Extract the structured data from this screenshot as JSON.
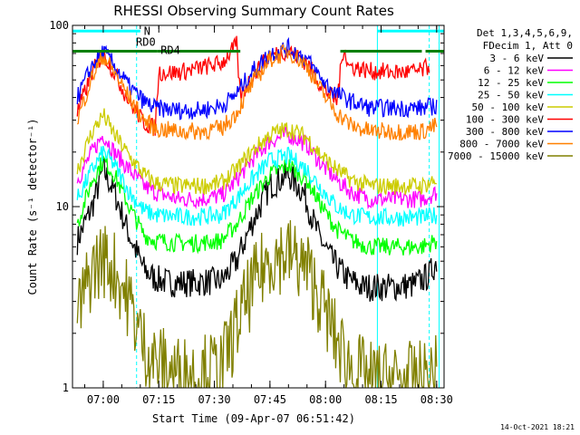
{
  "chart_data": {
    "type": "line",
    "title": "RHESSI Observing Summary Count Rates",
    "xlabel": "Start Time (09-Apr-07 06:51:42)",
    "ylabel": "Count Rate (s⁻¹ detector⁻¹)",
    "yscale": "log",
    "ylim": [
      1,
      100
    ],
    "xlim_minutes_clock": [
      "06:51:42",
      "08:32:00"
    ],
    "x_ticks": [
      "07:00",
      "07:15",
      "07:30",
      "07:45",
      "08:00",
      "08:15",
      "08:30"
    ],
    "y_ticks": [
      "1",
      "10",
      "100"
    ],
    "legend_header": [
      "Det 1,3,4,5,6,9,",
      "FDecim 1, Att 0"
    ],
    "series": [
      {
        "name": "3 - 6 keV",
        "color": "#000000",
        "points": [
          [
            "06:53",
            6.5
          ],
          [
            "06:57",
            10
          ],
          [
            "07:00",
            16
          ],
          [
            "07:03",
            12
          ],
          [
            "07:07",
            7
          ],
          [
            "07:11",
            4.5
          ],
          [
            "07:14",
            4
          ],
          [
            "07:18",
            3.8
          ],
          [
            "07:25",
            3.8
          ],
          [
            "07:32",
            3.9
          ],
          [
            "07:36",
            5
          ],
          [
            "07:40",
            8
          ],
          [
            "07:45",
            13
          ],
          [
            "07:50",
            15
          ],
          [
            "07:54",
            12
          ],
          [
            "07:58",
            7
          ],
          [
            "08:02",
            5
          ],
          [
            "08:06",
            4
          ],
          [
            "08:10",
            3.6
          ],
          [
            "08:18",
            3.6
          ],
          [
            "08:24",
            3.7
          ],
          [
            "08:28",
            4.2
          ],
          [
            "08:30",
            5
          ]
        ]
      },
      {
        "name": "6 - 12 keV",
        "color": "#ff00ff",
        "points": [
          [
            "06:53",
            14
          ],
          [
            "06:57",
            20
          ],
          [
            "07:00",
            25
          ],
          [
            "07:03",
            20
          ],
          [
            "07:07",
            16
          ],
          [
            "07:11",
            13
          ],
          [
            "07:14",
            12
          ],
          [
            "07:20",
            11
          ],
          [
            "07:26",
            11
          ],
          [
            "07:32",
            11.5
          ],
          [
            "07:36",
            14
          ],
          [
            "07:40",
            18
          ],
          [
            "07:45",
            23
          ],
          [
            "07:50",
            25
          ],
          [
            "07:55",
            22
          ],
          [
            "07:59",
            17
          ],
          [
            "08:03",
            14
          ],
          [
            "08:07",
            12
          ],
          [
            "08:12",
            11
          ],
          [
            "08:20",
            11
          ],
          [
            "08:26",
            11
          ],
          [
            "08:30",
            12
          ]
        ]
      },
      {
        "name": "12 - 25 keV",
        "color": "#00ff00",
        "points": [
          [
            "06:53",
            8
          ],
          [
            "06:57",
            14
          ],
          [
            "07:00",
            18
          ],
          [
            "07:03",
            15
          ],
          [
            "07:07",
            10
          ],
          [
            "07:11",
            7
          ],
          [
            "07:14",
            6.5
          ],
          [
            "07:20",
            6.3
          ],
          [
            "07:26",
            6.3
          ],
          [
            "07:32",
            6.5
          ],
          [
            "07:36",
            8
          ],
          [
            "07:40",
            11
          ],
          [
            "07:45",
            15
          ],
          [
            "07:50",
            17
          ],
          [
            "07:55",
            14
          ],
          [
            "07:59",
            10
          ],
          [
            "08:03",
            7.5
          ],
          [
            "08:07",
            6.5
          ],
          [
            "08:12",
            6
          ],
          [
            "08:20",
            6
          ],
          [
            "08:26",
            6
          ],
          [
            "08:30",
            6.5
          ]
        ]
      },
      {
        "name": "25 - 50 keV",
        "color": "#00ffff",
        "points": [
          [
            "06:53",
            11
          ],
          [
            "06:57",
            16
          ],
          [
            "07:00",
            20
          ],
          [
            "07:03",
            17
          ],
          [
            "07:07",
            12
          ],
          [
            "07:11",
            9.5
          ],
          [
            "07:14",
            9
          ],
          [
            "07:20",
            8.8
          ],
          [
            "07:26",
            8.8
          ],
          [
            "07:32",
            9
          ],
          [
            "07:36",
            11
          ],
          [
            "07:40",
            14
          ],
          [
            "07:45",
            18
          ],
          [
            "07:50",
            19
          ],
          [
            "07:55",
            16
          ],
          [
            "07:59",
            12.5
          ],
          [
            "08:03",
            10
          ],
          [
            "08:07",
            9
          ],
          [
            "08:12",
            8.7
          ],
          [
            "08:20",
            8.7
          ],
          [
            "08:26",
            8.7
          ],
          [
            "08:30",
            9
          ]
        ]
      },
      {
        "name": "50 - 100 keV",
        "color": "#cccc00",
        "points": [
          [
            "06:53",
            16
          ],
          [
            "06:57",
            26
          ],
          [
            "07:00",
            32
          ],
          [
            "07:03",
            25
          ],
          [
            "07:07",
            19
          ],
          [
            "07:11",
            15
          ],
          [
            "07:14",
            13.5
          ],
          [
            "07:20",
            13
          ],
          [
            "07:26",
            13
          ],
          [
            "07:32",
            13.5
          ],
          [
            "07:36",
            16
          ],
          [
            "07:40",
            20
          ],
          [
            "07:45",
            25
          ],
          [
            "07:50",
            27
          ],
          [
            "07:55",
            24
          ],
          [
            "07:59",
            19
          ],
          [
            "08:03",
            16
          ],
          [
            "08:07",
            14
          ],
          [
            "08:12",
            13
          ],
          [
            "08:20",
            13
          ],
          [
            "08:26",
            13
          ],
          [
            "08:30",
            14
          ]
        ]
      },
      {
        "name": "100 - 300 keV",
        "color": "#ff0000",
        "points": [
          [
            "06:53",
            33
          ],
          [
            "06:57",
            55
          ],
          [
            "07:00",
            70
          ],
          [
            "07:03",
            55
          ],
          [
            "07:07",
            38
          ],
          [
            "07:11",
            29
          ],
          [
            "07:14",
            27
          ],
          [
            "07:15",
            55
          ],
          [
            "07:20",
            55
          ],
          [
            "07:26",
            58
          ],
          [
            "07:32",
            62
          ],
          [
            "07:36",
            78
          ],
          [
            "07:37",
            40
          ],
          [
            "07:40",
            52
          ],
          [
            "07:45",
            68
          ],
          [
            "07:50",
            73
          ],
          [
            "07:55",
            62
          ],
          [
            "07:59",
            46
          ],
          [
            "08:03",
            38
          ],
          [
            "08:05",
            78
          ],
          [
            "08:06",
            60
          ],
          [
            "08:12",
            56
          ],
          [
            "08:20",
            55
          ],
          [
            "08:26",
            56
          ],
          [
            "08:28",
            60
          ]
        ]
      },
      {
        "name": "300 - 800 keV",
        "color": "#0000ff",
        "points": [
          [
            "06:53",
            40
          ],
          [
            "06:57",
            60
          ],
          [
            "07:00",
            72
          ],
          [
            "07:03",
            60
          ],
          [
            "07:07",
            46
          ],
          [
            "07:11",
            38
          ],
          [
            "07:14",
            35
          ],
          [
            "07:20",
            34
          ],
          [
            "07:26",
            34
          ],
          [
            "07:32",
            36
          ],
          [
            "07:36",
            42
          ],
          [
            "07:40",
            55
          ],
          [
            "07:45",
            70
          ],
          [
            "07:50",
            75
          ],
          [
            "07:55",
            65
          ],
          [
            "07:59",
            50
          ],
          [
            "08:03",
            42
          ],
          [
            "08:07",
            38
          ],
          [
            "08:12",
            35
          ],
          [
            "08:20",
            35
          ],
          [
            "08:26",
            35
          ],
          [
            "08:30",
            36
          ]
        ]
      },
      {
        "name": "800 - 7000 keV",
        "color": "#ff8000",
        "points": [
          [
            "06:53",
            30
          ],
          [
            "06:57",
            52
          ],
          [
            "07:00",
            68
          ],
          [
            "07:03",
            55
          ],
          [
            "07:07",
            40
          ],
          [
            "07:11",
            30
          ],
          [
            "07:14",
            27
          ],
          [
            "07:20",
            26
          ],
          [
            "07:26",
            26
          ],
          [
            "07:32",
            27
          ],
          [
            "07:36",
            33
          ],
          [
            "07:40",
            47
          ],
          [
            "07:45",
            65
          ],
          [
            "07:50",
            72
          ],
          [
            "07:55",
            60
          ],
          [
            "07:59",
            43
          ],
          [
            "08:03",
            33
          ],
          [
            "08:07",
            28
          ],
          [
            "08:12",
            26
          ],
          [
            "08:20",
            26
          ],
          [
            "08:26",
            26
          ],
          [
            "08:30",
            28
          ]
        ]
      },
      {
        "name": "7000 - 15000 keV",
        "color": "#808000",
        "points": [
          [
            "06:53",
            2.5
          ],
          [
            "06:57",
            4.5
          ],
          [
            "07:00",
            5.2
          ],
          [
            "07:03",
            4.5
          ],
          [
            "07:07",
            3
          ],
          [
            "07:11",
            1.7
          ],
          [
            "07:14",
            1.4
          ],
          [
            "07:20",
            1.2
          ],
          [
            "07:26",
            1.2
          ],
          [
            "07:32",
            1.3
          ],
          [
            "07:36",
            2.2
          ],
          [
            "07:40",
            3.5
          ],
          [
            "07:45",
            5.3
          ],
          [
            "07:50",
            5.5
          ],
          [
            "07:55",
            4.5
          ],
          [
            "07:59",
            3
          ],
          [
            "08:03",
            1.8
          ],
          [
            "08:07",
            1.3
          ],
          [
            "08:12",
            1.1
          ],
          [
            "08:20",
            1.1
          ],
          [
            "08:26",
            1.1
          ],
          [
            "08:30",
            1.2
          ]
        ]
      }
    ],
    "status_bars": [
      {
        "name": "N",
        "color": "#00ffff",
        "segments": [
          [
            "06:51:42",
            "07:10"
          ],
          [
            "08:14",
            "08:32"
          ]
        ],
        "y": 93
      },
      {
        "name": "RD0",
        "color": "#008000",
        "segments": [
          [
            "06:51:42",
            "07:14:30"
          ]
        ],
        "y": 72
      },
      {
        "name": "RD4",
        "color": "#008000",
        "segments": [
          [
            "07:14:30",
            "07:37"
          ],
          [
            "08:04",
            "08:26"
          ],
          [
            "08:27",
            "08:32"
          ]
        ],
        "y": 72
      }
    ],
    "vertical_markers": {
      "solid": [
        "06:51:42",
        "08:14",
        "08:30:40"
      ],
      "dashed": [
        "07:09",
        "08:28"
      ],
      "color": "#00ffff"
    },
    "timestamp": "14-Oct-2021 18:21"
  }
}
